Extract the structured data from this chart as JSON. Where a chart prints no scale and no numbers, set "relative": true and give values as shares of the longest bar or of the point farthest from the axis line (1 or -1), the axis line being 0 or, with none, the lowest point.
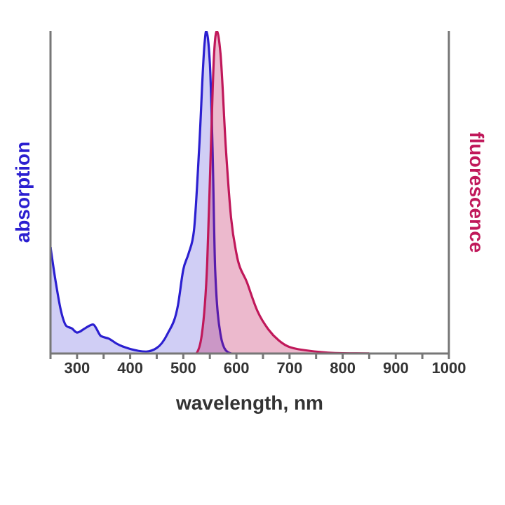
{
  "chart_data": {
    "type": "area",
    "relative": true,
    "xlabel": "wavelength, nm",
    "ylabel": "absorption",
    "y2label": "fluorescence",
    "xlim": [
      250,
      1000
    ],
    "xticks": [
      {
        "value": 250,
        "label": null
      },
      300,
      {
        "value": 350,
        "label": null
      },
      400,
      {
        "value": 450,
        "label": null
      },
      500,
      {
        "value": 550,
        "label": null
      },
      600,
      {
        "value": 650,
        "label": null
      },
      700,
      {
        "value": 750,
        "label": null
      },
      800,
      {
        "value": 850,
        "label": null
      },
      900,
      {
        "value": 950,
        "label": null
      },
      1000
    ],
    "series": [
      {
        "color": "#2b1fd0",
        "x": [
          250,
          260,
          270,
          280,
          290,
          300,
          315,
          330,
          345,
          360,
          375,
          400,
          430,
          450,
          470,
          490,
          500,
          510,
          520,
          530,
          540,
          543,
          550,
          555,
          560,
          570,
          580,
          590
        ],
        "values": [
          0.33,
          0.22,
          0.13,
          0.085,
          0.078,
          0.065,
          0.078,
          0.09,
          0.054,
          0.046,
          0.03,
          0.014,
          0.006,
          0.017,
          0.06,
          0.15,
          0.26,
          0.31,
          0.38,
          0.64,
          0.96,
          1,
          0.9,
          0.64,
          0.26,
          0.06,
          0.01,
          0
        ]
      },
      {
        "color": "#c0185a",
        "axis": "y2",
        "x": [
          525,
          535,
          545,
          552,
          558,
          563,
          570,
          580,
          590,
          600,
          620,
          640,
          660,
          680,
          700,
          750,
          800,
          850
        ],
        "values": [
          0,
          0.06,
          0.28,
          0.64,
          0.93,
          1,
          0.93,
          0.64,
          0.42,
          0.31,
          0.22,
          0.13,
          0.075,
          0.04,
          0.02,
          0.006,
          0.001,
          0
        ]
      }
    ]
  }
}
